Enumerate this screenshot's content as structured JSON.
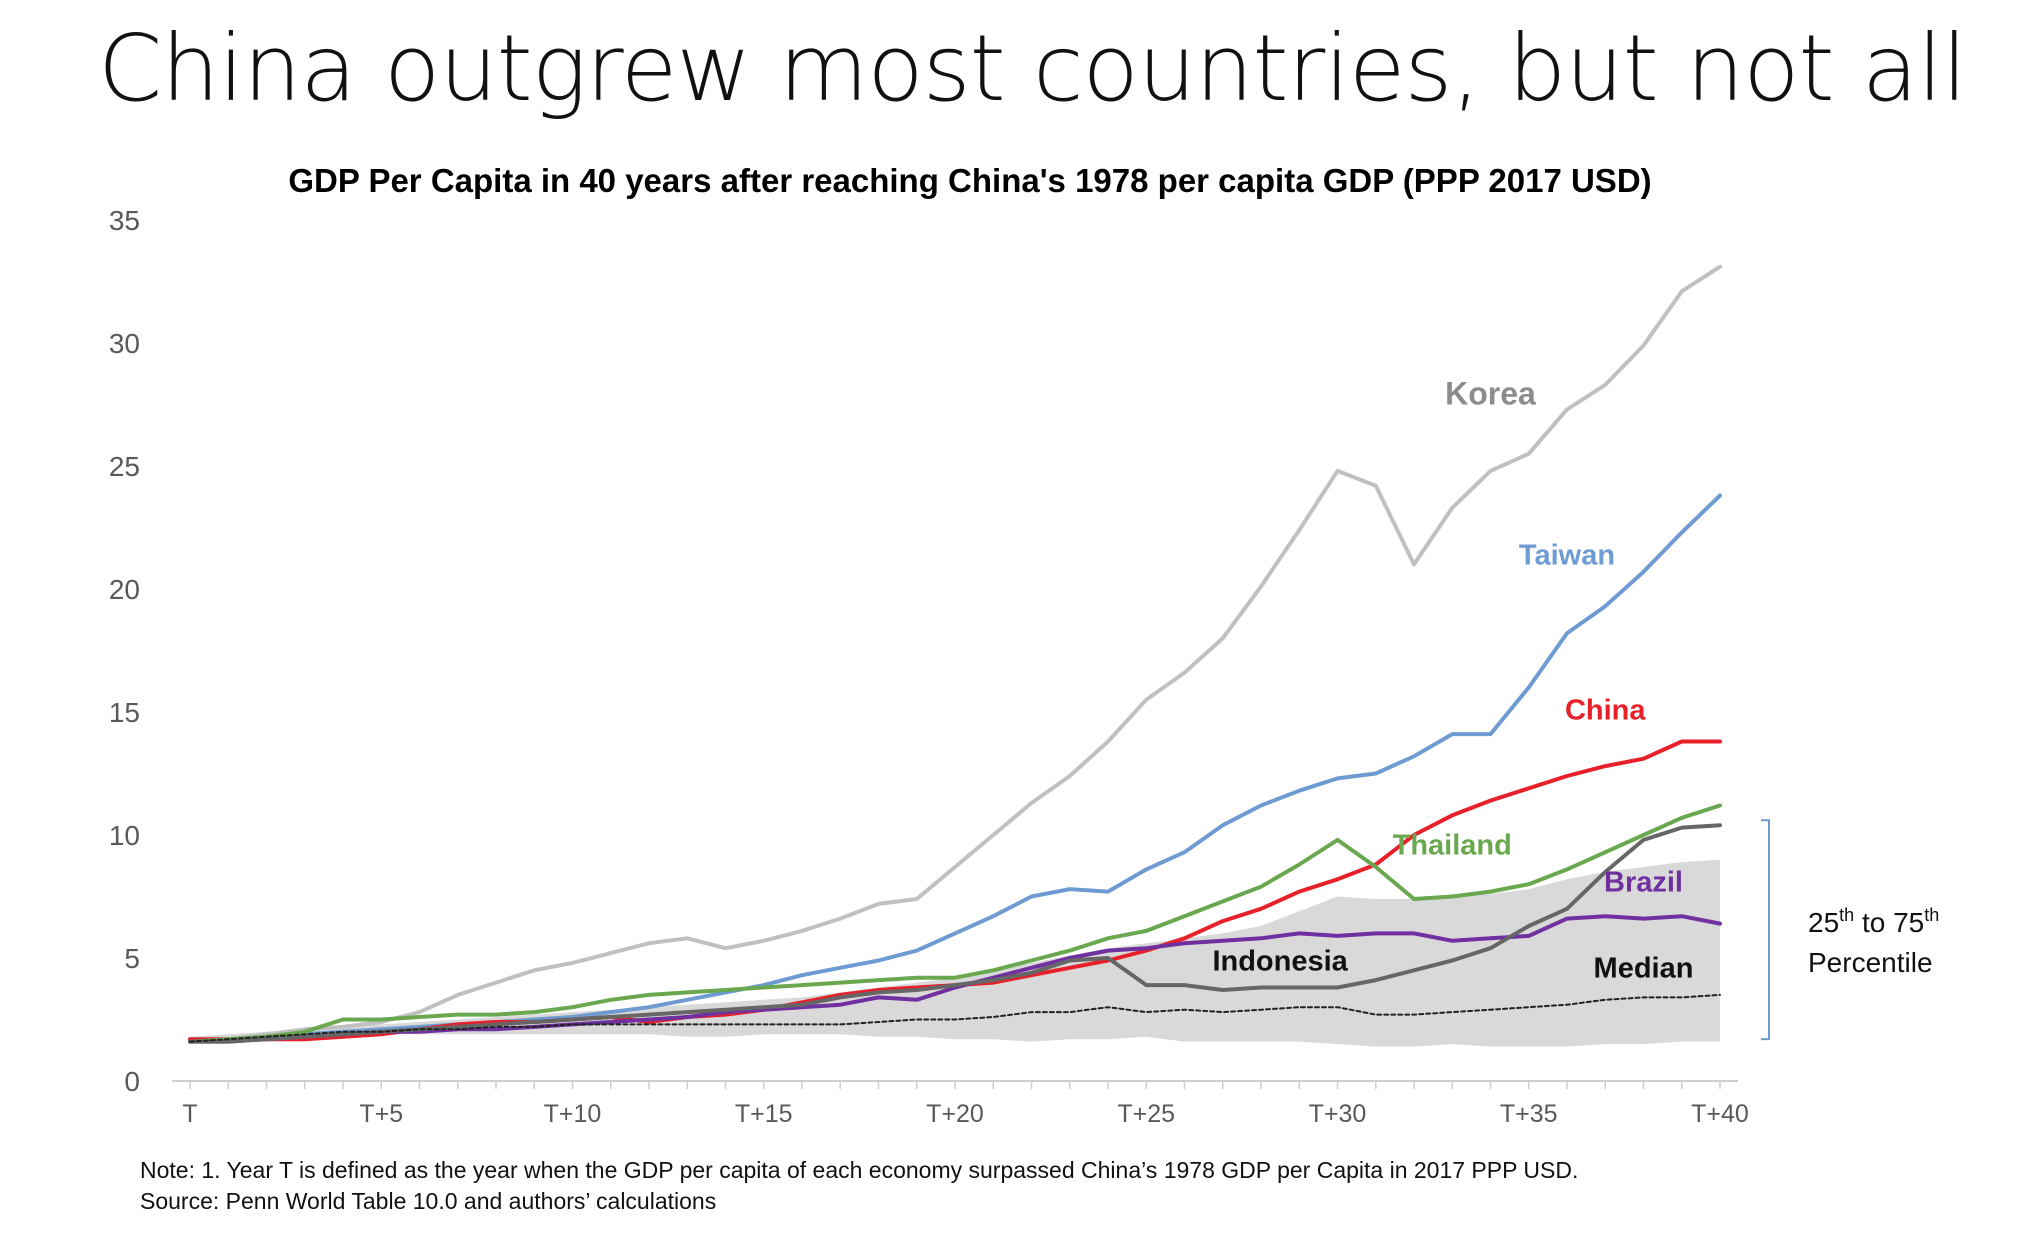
{
  "slide": {
    "title": "China outgrew most countries, but not all",
    "note": "Note: 1. Year T is defined as the year when the GDP per capita of each economy surpassed China’s 1978 GDP per Capita in 2017 PPP USD.",
    "source": "Source: Penn World Table 10.0 and authors’ calculations"
  },
  "chart_data": {
    "type": "line",
    "title": "GDP Per Capita in 40 years after reaching China's 1978 per capita GDP (PPP 2017 USD)",
    "xlabel": "",
    "ylabel": "",
    "x": [
      0,
      1,
      2,
      3,
      4,
      5,
      6,
      7,
      8,
      9,
      10,
      11,
      12,
      13,
      14,
      15,
      16,
      17,
      18,
      19,
      20,
      21,
      22,
      23,
      24,
      25,
      26,
      27,
      28,
      29,
      30,
      31,
      32,
      33,
      34,
      35,
      36,
      37,
      38,
      39,
      40
    ],
    "x_tick_values": [
      0,
      5,
      10,
      15,
      20,
      25,
      30,
      35,
      40
    ],
    "x_tick_labels": [
      "T",
      "T+5",
      "T+10",
      "T+15",
      "T+20",
      "T+25",
      "T+30",
      "T+35",
      "T+40"
    ],
    "xlim": [
      0,
      40
    ],
    "ylim": [
      0,
      35
    ],
    "y_ticks": [
      0,
      5,
      10,
      15,
      20,
      25,
      30,
      35
    ],
    "grid": false,
    "legend": "none",
    "series": [
      {
        "name": "Korea",
        "color": "#c0c0c0",
        "values": [
          1.6,
          1.7,
          1.9,
          2.1,
          2.2,
          2.4,
          2.8,
          3.5,
          4.0,
          4.5,
          4.8,
          5.2,
          5.6,
          5.8,
          5.4,
          5.7,
          6.1,
          6.6,
          7.2,
          7.4,
          8.7,
          10.0,
          11.3,
          12.4,
          13.8,
          15.5,
          16.6,
          18.0,
          20.1,
          22.4,
          24.8,
          24.2,
          21.0,
          23.3,
          24.8,
          25.5,
          27.3,
          28.3,
          29.9,
          32.1,
          33.1
        ],
        "label_at": [
          34,
          27.5
        ]
      },
      {
        "name": "Taiwan",
        "color": "#6f9bd3",
        "values": [
          1.6,
          1.7,
          1.8,
          1.9,
          2.0,
          2.1,
          2.2,
          2.3,
          2.4,
          2.5,
          2.6,
          2.8,
          3.0,
          3.3,
          3.6,
          3.9,
          4.3,
          4.6,
          4.9,
          5.3,
          6.0,
          6.7,
          7.5,
          7.8,
          7.7,
          8.6,
          9.3,
          10.4,
          11.2,
          11.8,
          12.3,
          12.5,
          13.2,
          14.1,
          14.1,
          16.0,
          18.2,
          19.3,
          20.7,
          22.3,
          23.8
        ],
        "label_at": [
          36,
          21
        ]
      },
      {
        "name": "China",
        "color": "#e8202a",
        "values": [
          1.7,
          1.7,
          1.7,
          1.7,
          1.8,
          1.9,
          2.1,
          2.3,
          2.4,
          2.4,
          2.5,
          2.6,
          2.4,
          2.6,
          2.7,
          2.9,
          3.2,
          3.5,
          3.7,
          3.8,
          3.9,
          4.0,
          4.3,
          4.6,
          4.9,
          5.3,
          5.8,
          6.5,
          7.0,
          7.7,
          8.2,
          8.8,
          10.0,
          10.8,
          11.4,
          11.9,
          12.4,
          12.8,
          13.1,
          13.8,
          13.8
        ],
        "label_at": [
          37,
          14.7
        ]
      },
      {
        "name": "Thailand",
        "color": "#6aa84f",
        "values": [
          1.6,
          1.7,
          1.8,
          2.0,
          2.5,
          2.5,
          2.6,
          2.7,
          2.7,
          2.8,
          3.0,
          3.3,
          3.5,
          3.6,
          3.7,
          3.8,
          3.9,
          4.0,
          4.1,
          4.2,
          4.2,
          4.5,
          4.9,
          5.3,
          5.8,
          6.1,
          6.7,
          7.3,
          7.9,
          8.8,
          9.8,
          8.7,
          7.4,
          7.5,
          7.7,
          8.0,
          8.6,
          9.3,
          10.0,
          10.7,
          11.2
        ],
        "label_at": [
          33,
          9.2
        ]
      },
      {
        "name": "Brazil",
        "color": "#7030a0",
        "values": [
          1.6,
          1.6,
          1.7,
          1.8,
          1.9,
          2.0,
          2.0,
          2.1,
          2.1,
          2.2,
          2.3,
          2.4,
          2.5,
          2.6,
          2.8,
          2.9,
          3.0,
          3.1,
          3.4,
          3.3,
          3.8,
          4.2,
          4.6,
          5.0,
          5.3,
          5.4,
          5.6,
          5.7,
          5.8,
          6.0,
          5.9,
          6.0,
          6.0,
          5.7,
          5.8,
          5.9,
          6.6,
          6.7,
          6.6,
          6.7,
          6.4
        ],
        "label_at": [
          38,
          7.7
        ]
      },
      {
        "name": "Indonesia",
        "color": "#666666",
        "values": [
          1.6,
          1.6,
          1.7,
          1.8,
          1.9,
          2.0,
          2.1,
          2.2,
          2.3,
          2.4,
          2.5,
          2.6,
          2.7,
          2.8,
          2.9,
          3.0,
          3.1,
          3.4,
          3.6,
          3.7,
          3.9,
          4.1,
          4.4,
          4.9,
          5.0,
          3.9,
          3.9,
          3.7,
          3.8,
          3.8,
          3.8,
          4.1,
          4.5,
          4.9,
          5.4,
          6.3,
          7.0,
          8.5,
          9.8,
          10.3,
          10.4
        ],
        "label_at": [
          28.5,
          4.5
        ]
      },
      {
        "name": "Median",
        "color": "#222222",
        "dashed": true,
        "values": [
          1.6,
          1.7,
          1.8,
          1.9,
          2.0,
          2.0,
          2.1,
          2.1,
          2.2,
          2.2,
          2.3,
          2.3,
          2.3,
          2.3,
          2.3,
          2.3,
          2.3,
          2.3,
          2.4,
          2.5,
          2.5,
          2.6,
          2.8,
          2.8,
          3.0,
          2.8,
          2.9,
          2.8,
          2.9,
          3.0,
          3.0,
          2.7,
          2.7,
          2.8,
          2.9,
          3.0,
          3.1,
          3.3,
          3.4,
          3.4,
          3.5
        ],
        "label_at": [
          38,
          4.2
        ]
      }
    ],
    "band": {
      "name": "25th to 75th Percentile",
      "label_main": "25",
      "label_sup": "th",
      "label_to": "to 75",
      "label_sup2": "th",
      "label_line2": "Percentile",
      "fill": "#d9d9d9",
      "bracket_color": "#6f9bd3",
      "lower": [
        1.7,
        1.7,
        1.8,
        1.8,
        1.8,
        1.9,
        1.9,
        1.9,
        1.9,
        1.9,
        1.9,
        1.9,
        1.9,
        1.8,
        1.8,
        1.9,
        1.9,
        1.9,
        1.8,
        1.8,
        1.7,
        1.7,
        1.6,
        1.7,
        1.7,
        1.8,
        1.6,
        1.6,
        1.6,
        1.6,
        1.5,
        1.4,
        1.4,
        1.5,
        1.4,
        1.4,
        1.4,
        1.5,
        1.5,
        1.6,
        1.6
      ],
      "upper": [
        1.8,
        1.9,
        2.0,
        2.1,
        2.2,
        2.3,
        2.4,
        2.5,
        2.6,
        2.7,
        2.8,
        2.9,
        3.0,
        3.1,
        3.2,
        3.3,
        3.4,
        3.6,
        3.8,
        4.0,
        4.2,
        4.5,
        4.8,
        5.1,
        5.4,
        5.6,
        5.8,
        6.0,
        6.3,
        6.9,
        7.5,
        7.4,
        7.4,
        7.5,
        7.6,
        7.8,
        8.2,
        8.5,
        8.7,
        8.9,
        9.0
      ]
    }
  }
}
